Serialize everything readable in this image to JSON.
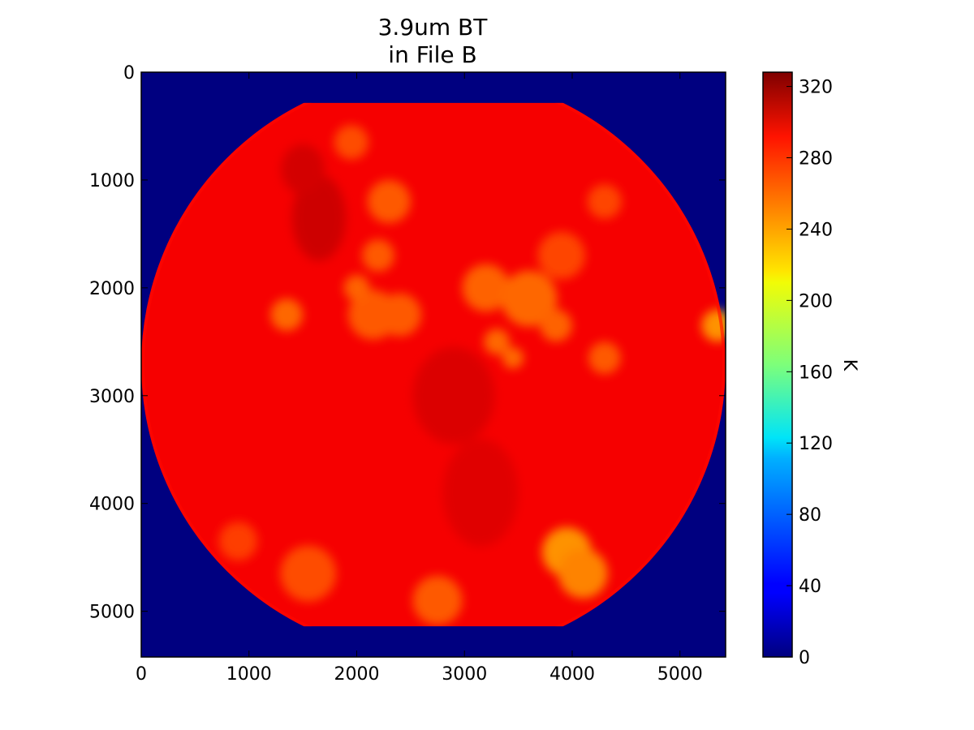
{
  "chart_data": {
    "type": "heatmap",
    "title": [
      "3.9um BT",
      "in File B"
    ],
    "xlim": [
      0,
      5424
    ],
    "ylim": [
      5424,
      0
    ],
    "x_ticks": [
      0,
      1000,
      2000,
      3000,
      4000,
      5000
    ],
    "y_ticks": [
      0,
      1000,
      2000,
      3000,
      4000,
      5000
    ],
    "x_tick_labels": [
      "0",
      "1000",
      "2000",
      "3000",
      "4000",
      "5000"
    ],
    "y_tick_labels": [
      "0",
      "1000",
      "2000",
      "3000",
      "4000",
      "5000"
    ],
    "colorbar": {
      "label": "K",
      "colormap": "jet",
      "range": [
        0,
        328
      ],
      "ticks": [
        0,
        40,
        80,
        120,
        160,
        200,
        240,
        280,
        320
      ],
      "tick_labels": [
        "0",
        "40",
        "80",
        "120",
        "160",
        "200",
        "240",
        "280",
        "320"
      ]
    },
    "disk": {
      "center": [
        2712,
        2712
      ],
      "radius": 2712,
      "clip_top": 285,
      "clip_bottom": 5139,
      "dominant_value": 290,
      "background_value": 0
    },
    "cold_cloud_regions": [
      {
        "center": [
          1350,
          2250
        ],
        "radius": 150,
        "value": 250
      },
      {
        "center": [
          2150,
          2250
        ],
        "radius": 230,
        "value": 255
      },
      {
        "center": [
          2000,
          2000
        ],
        "radius": 120,
        "value": 252
      },
      {
        "center": [
          2400,
          2250
        ],
        "radius": 200,
        "value": 255
      },
      {
        "center": [
          3200,
          2000
        ],
        "radius": 220,
        "value": 252
      },
      {
        "center": [
          3600,
          2100
        ],
        "radius": 260,
        "value": 250
      },
      {
        "center": [
          3850,
          2350
        ],
        "radius": 150,
        "value": 252
      },
      {
        "center": [
          3300,
          2500
        ],
        "radius": 120,
        "value": 250
      },
      {
        "center": [
          3450,
          2650
        ],
        "radius": 100,
        "value": 250
      },
      {
        "center": [
          4300,
          2650
        ],
        "radius": 150,
        "value": 255
      },
      {
        "center": [
          5350,
          2350
        ],
        "radius": 150,
        "value": 235
      },
      {
        "center": [
          3950,
          4450
        ],
        "radius": 230,
        "value": 235
      },
      {
        "center": [
          4100,
          4650
        ],
        "radius": 230,
        "value": 240
      },
      {
        "center": [
          2300,
          1200
        ],
        "radius": 200,
        "value": 255
      },
      {
        "center": [
          1950,
          650
        ],
        "radius": 160,
        "value": 260
      },
      {
        "center": [
          2200,
          1700
        ],
        "radius": 150,
        "value": 255
      },
      {
        "center": [
          1550,
          4650
        ],
        "radius": 260,
        "value": 260
      },
      {
        "center": [
          2750,
          4900
        ],
        "radius": 230,
        "value": 255
      },
      {
        "center": [
          900,
          4350
        ],
        "radius": 180,
        "value": 265
      },
      {
        "center": [
          3900,
          1700
        ],
        "radius": 220,
        "value": 262
      },
      {
        "center": [
          4300,
          1200
        ],
        "radius": 160,
        "value": 262
      }
    ],
    "warm_land_regions": [
      {
        "center": [
          1650,
          1350
        ],
        "rx": 250,
        "ry": 400,
        "value": 305
      },
      {
        "center": [
          1500,
          900
        ],
        "rx": 200,
        "ry": 230,
        "value": 303
      },
      {
        "center": [
          2900,
          3000
        ],
        "rx": 380,
        "ry": 450,
        "value": 300
      },
      {
        "center": [
          3150,
          3900
        ],
        "rx": 350,
        "ry": 500,
        "value": 298
      }
    ]
  }
}
